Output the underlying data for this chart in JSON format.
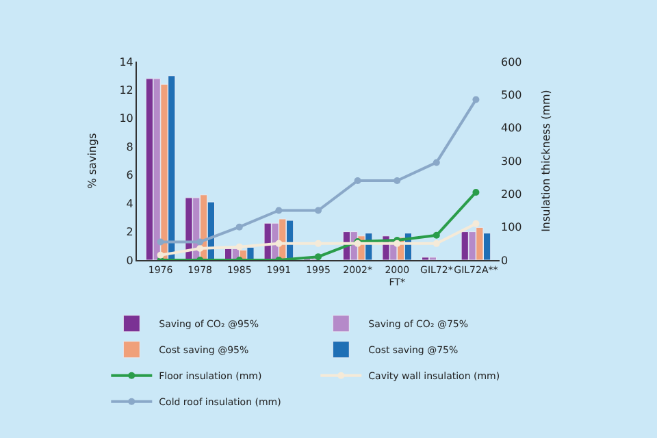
{
  "chart_data": {
    "type": "bar",
    "ylabel": "% savings",
    "y2label": "Insulation thickness (mm)",
    "categories": [
      "1976",
      "1978",
      "1985",
      "1991",
      "1995",
      "2002*",
      "2000\nFT*",
      "GIL72*",
      "GIL72A**"
    ],
    "series": [
      {
        "name": "Saving of CO₂ @95%",
        "color": "#7b3294",
        "values": [
          12.8,
          4.4,
          0.8,
          2.6,
          0.1,
          2.0,
          1.7,
          0.2,
          2.0
        ]
      },
      {
        "name": "Saving of CO₂ @75%",
        "color": "#b58ac9",
        "values": [
          12.8,
          4.4,
          0.8,
          2.6,
          0.1,
          2.0,
          1.5,
          0.2,
          2.0
        ]
      },
      {
        "name": "Cost saving @95%",
        "color": "#f0a07a",
        "values": [
          12.4,
          4.6,
          0.7,
          2.9,
          null,
          1.7,
          1.6,
          null,
          2.3
        ]
      },
      {
        "name": "Cost saving @75%",
        "color": "#1f6fb5",
        "values": [
          13.0,
          4.1,
          0.9,
          2.8,
          null,
          1.9,
          1.9,
          null,
          1.9
        ]
      },
      {
        "name": "Floor insulation (mm)",
        "type": "line",
        "axis": "y2",
        "color": "#2a9d4a",
        "values": [
          0,
          0,
          0,
          0,
          10,
          56,
          60,
          75,
          205
        ]
      },
      {
        "name": "Cavity wall insulation (mm)",
        "type": "line",
        "axis": "y2",
        "color": "#f5ead8",
        "values": [
          15,
          35,
          40,
          50,
          50,
          50,
          50,
          50,
          110
        ]
      },
      {
        "name": "Cold roof insulation (mm)",
        "type": "line",
        "axis": "y2",
        "color": "#8aa8c8",
        "values": [
          55,
          55,
          100,
          150,
          150,
          240,
          240,
          295,
          485
        ]
      }
    ],
    "ylim": [
      0,
      14
    ],
    "yticks": [
      0,
      2,
      4,
      6,
      8,
      10,
      12,
      14
    ],
    "y2lim": [
      0,
      600
    ],
    "y2ticks": [
      0,
      100,
      200,
      300,
      400,
      500,
      600
    ],
    "grid": false,
    "legend": "bottom",
    "marker": "circle",
    "line_style": "solid"
  }
}
